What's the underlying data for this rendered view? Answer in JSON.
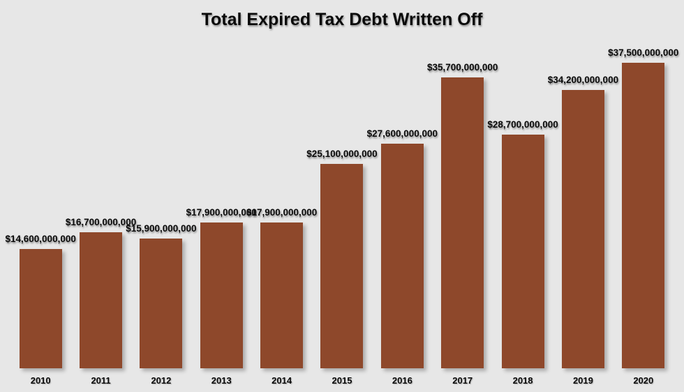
{
  "title": "Total Expired Tax Debt Written Off",
  "colors": {
    "background": "#e7e7e7",
    "bar": "#8e482b",
    "text": "#0a0a0a"
  },
  "chart_data": {
    "type": "bar",
    "title": "Total Expired Tax Debt Written Off",
    "categories": [
      "2010",
      "2011",
      "2012",
      "2013",
      "2014",
      "2015",
      "2016",
      "2017",
      "2018",
      "2019",
      "2020"
    ],
    "values": [
      14600000000,
      16700000000,
      15900000000,
      17900000000,
      17900000000,
      25100000000,
      27600000000,
      35700000000,
      28700000000,
      34200000000,
      37500000000
    ],
    "value_labels": [
      "$14,600,000,000",
      "$16,700,000,000",
      "$15,900,000,000",
      "$17,900,000,000",
      "$17,900,000,000",
      "$25,100,000,000",
      "$27,600,000,000",
      "$35,700,000,000",
      "$28,700,000,000",
      "$34,200,000,000",
      "$37,500,000,000"
    ],
    "xlabel": "",
    "ylabel": "",
    "ylim": [
      0,
      37500000000
    ],
    "grid": false,
    "legend": false,
    "bar_color": "#8e482b"
  }
}
